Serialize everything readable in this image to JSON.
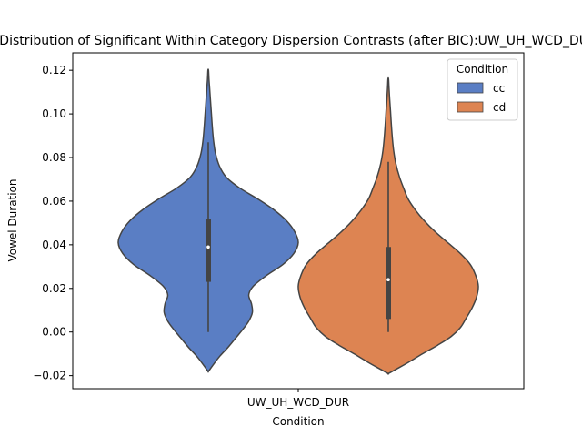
{
  "chart_data": {
    "type": "violin",
    "title": "Distribution of Significant Within Category Dispersion Contrasts (after BIC):UW_UH_WCD_DUR",
    "xlabel": "Condition",
    "ylabel": "Vowel Duration",
    "categories": [
      "UW_UH_WCD_DUR"
    ],
    "ylim": [
      -0.026,
      0.128
    ],
    "yticks": [
      -0.02,
      0.0,
      0.02,
      0.04,
      0.06,
      0.08,
      0.1,
      0.12
    ],
    "ytick_labels": [
      "−0.02",
      "0.00",
      "0.02",
      "0.04",
      "0.06",
      "0.08",
      "0.10",
      "0.12"
    ],
    "legend": {
      "title": "Condition",
      "placement": "upper-right",
      "entries": [
        "cc",
        "cd"
      ]
    },
    "series": [
      {
        "name": "cc",
        "color": "#5a7ec4",
        "min": 0.0,
        "q1": 0.023,
        "median": 0.039,
        "q3": 0.052,
        "max": 0.087,
        "violin_range": [
          -0.018,
          0.12
        ],
        "density_profile": [
          [
            0.12,
            0.3
          ],
          [
            0.116,
            0.8
          ],
          [
            0.112,
            1.5
          ],
          [
            0.106,
            2.5
          ],
          [
            0.1,
            3.5
          ],
          [
            0.094,
            4.5
          ],
          [
            0.088,
            5.8
          ],
          [
            0.082,
            8.0
          ],
          [
            0.076,
            12.5
          ],
          [
            0.071,
            20.0
          ],
          [
            0.066,
            35.0
          ],
          [
            0.061,
            55.0
          ],
          [
            0.056,
            73.0
          ],
          [
            0.051,
            87.0
          ],
          [
            0.046,
            96.0
          ],
          [
            0.041,
            100.0
          ],
          [
            0.036,
            95.0
          ],
          [
            0.031,
            83.0
          ],
          [
            0.026,
            65.0
          ],
          [
            0.021,
            50.0
          ],
          [
            0.017,
            45.0
          ],
          [
            0.013,
            48.0
          ],
          [
            0.009,
            49.0
          ],
          [
            0.005,
            45.0
          ],
          [
            0.001,
            38.0
          ],
          [
            -0.003,
            30.0
          ],
          [
            -0.007,
            22.0
          ],
          [
            -0.011,
            13.0
          ],
          [
            -0.015,
            5.5
          ],
          [
            -0.018,
            0.3
          ]
        ]
      },
      {
        "name": "cd",
        "color": "#dd8452",
        "min": 0.0,
        "q1": 0.006,
        "median": 0.024,
        "q3": 0.039,
        "max": 0.078,
        "violin_range": [
          -0.019,
          0.116
        ],
        "density_profile": [
          [
            0.116,
            0.3
          ],
          [
            0.112,
            0.8
          ],
          [
            0.107,
            1.5
          ],
          [
            0.101,
            2.5
          ],
          [
            0.095,
            3.4
          ],
          [
            0.089,
            4.5
          ],
          [
            0.083,
            6.0
          ],
          [
            0.077,
            8.5
          ],
          [
            0.071,
            12.5
          ],
          [
            0.066,
            17.0
          ],
          [
            0.061,
            22.0
          ],
          [
            0.056,
            30.0
          ],
          [
            0.051,
            40.0
          ],
          [
            0.046,
            52.0
          ],
          [
            0.041,
            66.0
          ],
          [
            0.036,
            80.0
          ],
          [
            0.031,
            91.0
          ],
          [
            0.026,
            97.0
          ],
          [
            0.021,
            100.0
          ],
          [
            0.016,
            98.0
          ],
          [
            0.011,
            93.0
          ],
          [
            0.006,
            86.0
          ],
          [
            0.002,
            80.0
          ],
          [
            -0.002,
            70.0
          ],
          [
            -0.006,
            55.0
          ],
          [
            -0.01,
            38.0
          ],
          [
            -0.014,
            22.0
          ],
          [
            -0.017,
            9.0
          ],
          [
            -0.019,
            0.3
          ]
        ]
      }
    ]
  }
}
